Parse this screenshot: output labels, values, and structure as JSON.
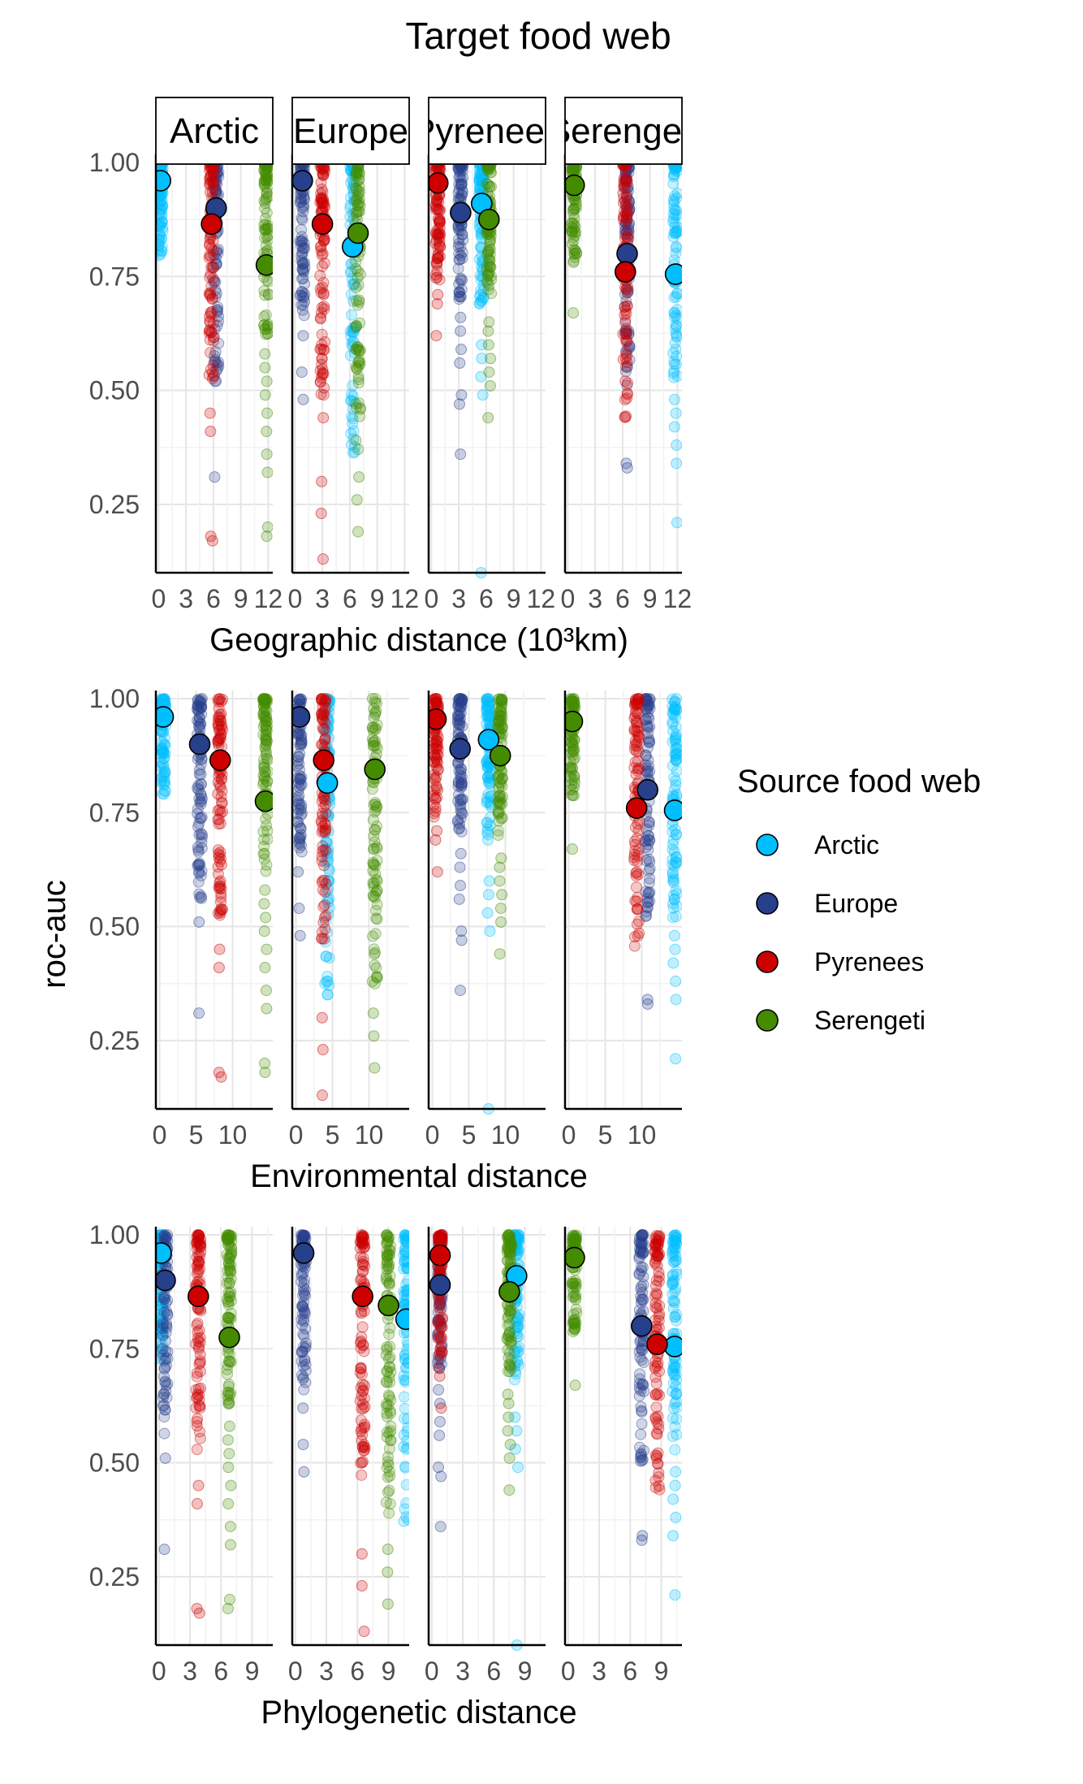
{
  "chart_data": {
    "type": "scatter",
    "title": "Target food web",
    "ylabel": "roc-auc",
    "ylim": [
      0.1,
      1.0
    ],
    "y_ticks": [
      "0.25",
      "0.50",
      "0.75",
      "1.00"
    ],
    "facets": [
      "Arctic",
      "Europe",
      "Pyrenees",
      "Serengeti"
    ],
    "legend": {
      "title": "Source food web",
      "position": "right",
      "entries": [
        {
          "name": "Arctic",
          "color": "#00bfff"
        },
        {
          "name": "Europe",
          "color": "#27408b"
        },
        {
          "name": "Pyrenees",
          "color": "#cd0000"
        },
        {
          "name": "Serengeti",
          "color": "#458b00"
        }
      ]
    },
    "rows": [
      {
        "xlabel": "Geographic distance (10³km)",
        "xlim": [
          -0.3,
          12.5
        ],
        "x_ticks": [
          "0",
          "3",
          "6",
          "9",
          "12"
        ],
        "panels": [
          {
            "target": "Arctic",
            "series": [
              {
                "source": "Arctic",
                "x": 0.2,
                "mean": 0.96,
                "min": 0.79,
                "max": 1.0,
                "outliers": []
              },
              {
                "source": "Europe",
                "x": 6.3,
                "mean": 0.9,
                "min": 0.51,
                "max": 1.0,
                "outliers": [
                  0.31
                ]
              },
              {
                "source": "Pyrenees",
                "x": 5.8,
                "mean": 0.865,
                "min": 0.52,
                "max": 1.0,
                "outliers": [
                  0.45,
                  0.41,
                  0.18,
                  0.17
                ]
              },
              {
                "source": "Serengeti",
                "x": 11.8,
                "mean": 0.775,
                "min": 0.62,
                "max": 1.0,
                "outliers": [
                  0.58,
                  0.55,
                  0.52,
                  0.49,
                  0.45,
                  0.41,
                  0.36,
                  0.32,
                  0.2,
                  0.18
                ]
              }
            ]
          },
          {
            "target": "Europe",
            "series": [
              {
                "source": "Arctic",
                "x": 6.3,
                "mean": 0.815,
                "min": 0.35,
                "max": 1.0,
                "outliers": []
              },
              {
                "source": "Europe",
                "x": 0.8,
                "mean": 0.96,
                "min": 0.66,
                "max": 1.0,
                "outliers": [
                  0.62,
                  0.54,
                  0.48
                ]
              },
              {
                "source": "Pyrenees",
                "x": 3.0,
                "mean": 0.865,
                "min": 0.47,
                "max": 1.0,
                "outliers": [
                  0.44,
                  0.3,
                  0.23,
                  0.13
                ]
              },
              {
                "source": "Serengeti",
                "x": 6.9,
                "mean": 0.845,
                "min": 0.37,
                "max": 1.0,
                "outliers": [
                  0.31,
                  0.26,
                  0.19
                ]
              }
            ]
          },
          {
            "target": "Pyrenees",
            "series": [
              {
                "source": "Arctic",
                "x": 5.5,
                "mean": 0.91,
                "min": 0.68,
                "max": 1.0,
                "outliers": [
                  0.6,
                  0.57,
                  0.53,
                  0.49,
                  0.1
                ]
              },
              {
                "source": "Europe",
                "x": 3.2,
                "mean": 0.89,
                "min": 0.7,
                "max": 1.0,
                "outliers": [
                  0.66,
                  0.63,
                  0.59,
                  0.56,
                  0.49,
                  0.47,
                  0.36
                ]
              },
              {
                "source": "Pyrenees",
                "x": 0.7,
                "mean": 0.955,
                "min": 0.73,
                "max": 1.0,
                "outliers": [
                  0.71,
                  0.69,
                  0.62
                ]
              },
              {
                "source": "Serengeti",
                "x": 6.3,
                "mean": 0.875,
                "min": 0.7,
                "max": 1.0,
                "outliers": [
                  0.65,
                  0.63,
                  0.6,
                  0.57,
                  0.54,
                  0.51,
                  0.44
                ]
              }
            ]
          },
          {
            "target": "Serengeti",
            "series": [
              {
                "source": "Arctic",
                "x": 11.8,
                "mean": 0.755,
                "min": 0.52,
                "max": 1.0,
                "outliers": [
                  0.48,
                  0.45,
                  0.42,
                  0.38,
                  0.34,
                  0.21
                ]
              },
              {
                "source": "Europe",
                "x": 6.5,
                "mean": 0.8,
                "min": 0.5,
                "max": 1.0,
                "outliers": [
                  0.34,
                  0.33
                ]
              },
              {
                "source": "Pyrenees",
                "x": 6.3,
                "mean": 0.76,
                "min": 0.44,
                "max": 1.0,
                "outliers": []
              },
              {
                "source": "Serengeti",
                "x": 0.7,
                "mean": 0.95,
                "min": 0.78,
                "max": 1.0,
                "outliers": [
                  0.67
                ]
              }
            ]
          }
        ]
      },
      {
        "xlabel": "Environmental distance",
        "xlim": [
          -0.5,
          15.5
        ],
        "x_ticks": [
          "0",
          "5",
          "10"
        ],
        "panels": [
          {
            "target": "Arctic",
            "series": [
              {
                "source": "Arctic",
                "x": 0.5,
                "mean": 0.96,
                "min": 0.79,
                "max": 1.0,
                "outliers": []
              },
              {
                "source": "Europe",
                "x": 5.5,
                "mean": 0.9,
                "min": 0.56,
                "max": 1.0,
                "outliers": [
                  0.51,
                  0.31
                ]
              },
              {
                "source": "Pyrenees",
                "x": 8.3,
                "mean": 0.865,
                "min": 0.52,
                "max": 1.0,
                "outliers": [
                  0.45,
                  0.41,
                  0.18,
                  0.17
                ]
              },
              {
                "source": "Serengeti",
                "x": 14.5,
                "mean": 0.775,
                "min": 0.62,
                "max": 1.0,
                "outliers": [
                  0.58,
                  0.55,
                  0.52,
                  0.49,
                  0.45,
                  0.41,
                  0.36,
                  0.32,
                  0.2,
                  0.18
                ]
              }
            ]
          },
          {
            "target": "Europe",
            "series": [
              {
                "source": "Arctic",
                "x": 4.3,
                "mean": 0.815,
                "min": 0.35,
                "max": 1.0,
                "outliers": []
              },
              {
                "source": "Europe",
                "x": 0.5,
                "mean": 0.96,
                "min": 0.66,
                "max": 1.0,
                "outliers": [
                  0.62,
                  0.54,
                  0.48
                ]
              },
              {
                "source": "Pyrenees",
                "x": 3.8,
                "mean": 0.865,
                "min": 0.47,
                "max": 1.0,
                "outliers": [
                  0.3,
                  0.23,
                  0.13
                ]
              },
              {
                "source": "Serengeti",
                "x": 10.8,
                "mean": 0.845,
                "min": 0.37,
                "max": 1.0,
                "outliers": [
                  0.31,
                  0.26,
                  0.19
                ]
              }
            ]
          },
          {
            "target": "Pyrenees",
            "series": [
              {
                "source": "Arctic",
                "x": 7.7,
                "mean": 0.91,
                "min": 0.68,
                "max": 1.0,
                "outliers": [
                  0.6,
                  0.57,
                  0.53,
                  0.49,
                  0.1
                ]
              },
              {
                "source": "Europe",
                "x": 3.8,
                "mean": 0.89,
                "min": 0.7,
                "max": 1.0,
                "outliers": [
                  0.66,
                  0.63,
                  0.59,
                  0.56,
                  0.49,
                  0.47,
                  0.36
                ]
              },
              {
                "source": "Pyrenees",
                "x": 0.5,
                "mean": 0.955,
                "min": 0.73,
                "max": 1.0,
                "outliers": [
                  0.71,
                  0.69,
                  0.62
                ]
              },
              {
                "source": "Serengeti",
                "x": 9.3,
                "mean": 0.875,
                "min": 0.7,
                "max": 1.0,
                "outliers": [
                  0.65,
                  0.63,
                  0.6,
                  0.57,
                  0.54,
                  0.51,
                  0.44
                ]
              }
            ]
          },
          {
            "target": "Serengeti",
            "series": [
              {
                "source": "Arctic",
                "x": 14.5,
                "mean": 0.755,
                "min": 0.52,
                "max": 1.0,
                "outliers": [
                  0.48,
                  0.45,
                  0.42,
                  0.38,
                  0.34,
                  0.21
                ]
              },
              {
                "source": "Europe",
                "x": 10.8,
                "mean": 0.8,
                "min": 0.5,
                "max": 1.0,
                "outliers": [
                  0.34,
                  0.33
                ]
              },
              {
                "source": "Pyrenees",
                "x": 9.3,
                "mean": 0.76,
                "min": 0.44,
                "max": 1.0,
                "outliers": []
              },
              {
                "source": "Serengeti",
                "x": 0.5,
                "mean": 0.95,
                "min": 0.78,
                "max": 1.0,
                "outliers": [
                  0.67
                ]
              }
            ]
          }
        ]
      },
      {
        "xlabel": "Phylogenetic distance",
        "xlim": [
          -0.3,
          11.0
        ],
        "x_ticks": [
          "0",
          "3",
          "6",
          "9"
        ],
        "panels": [
          {
            "target": "Arctic",
            "series": [
              {
                "source": "Arctic",
                "x": 0.2,
                "mean": 0.96,
                "min": 0.72,
                "max": 1.0,
                "outliers": []
              },
              {
                "source": "Europe",
                "x": 0.6,
                "mean": 0.9,
                "min": 0.56,
                "max": 1.0,
                "outliers": [
                  0.51,
                  0.31
                ]
              },
              {
                "source": "Pyrenees",
                "x": 3.8,
                "mean": 0.865,
                "min": 0.52,
                "max": 1.0,
                "outliers": [
                  0.45,
                  0.41,
                  0.18,
                  0.17
                ]
              },
              {
                "source": "Serengeti",
                "x": 6.8,
                "mean": 0.775,
                "min": 0.62,
                "max": 1.0,
                "outliers": [
                  0.58,
                  0.55,
                  0.52,
                  0.49,
                  0.45,
                  0.41,
                  0.36,
                  0.32,
                  0.2,
                  0.18
                ]
              }
            ]
          },
          {
            "target": "Europe",
            "series": [
              {
                "source": "Arctic",
                "x": 10.7,
                "mean": 0.815,
                "min": 0.35,
                "max": 1.0,
                "outliers": []
              },
              {
                "source": "Europe",
                "x": 0.8,
                "mean": 0.96,
                "min": 0.66,
                "max": 1.0,
                "outliers": [
                  0.62,
                  0.54,
                  0.48
                ]
              },
              {
                "source": "Pyrenees",
                "x": 6.5,
                "mean": 0.865,
                "min": 0.47,
                "max": 1.0,
                "outliers": [
                  0.3,
                  0.23,
                  0.13
                ]
              },
              {
                "source": "Serengeti",
                "x": 9.0,
                "mean": 0.845,
                "min": 0.37,
                "max": 1.0,
                "outliers": [
                  0.31,
                  0.26,
                  0.19
                ]
              }
            ]
          },
          {
            "target": "Pyrenees",
            "series": [
              {
                "source": "Arctic",
                "x": 8.2,
                "mean": 0.91,
                "min": 0.68,
                "max": 1.0,
                "outliers": [
                  0.6,
                  0.57,
                  0.53,
                  0.49,
                  0.1
                ]
              },
              {
                "source": "Europe",
                "x": 0.8,
                "mean": 0.89,
                "min": 0.7,
                "max": 1.0,
                "outliers": [
                  0.66,
                  0.63,
                  0.59,
                  0.56,
                  0.49,
                  0.47,
                  0.36
                ]
              },
              {
                "source": "Pyrenees",
                "x": 0.8,
                "mean": 0.955,
                "min": 0.73,
                "max": 1.0,
                "outliers": [
                  0.71,
                  0.69,
                  0.62
                ]
              },
              {
                "source": "Serengeti",
                "x": 7.5,
                "mean": 0.875,
                "min": 0.7,
                "max": 1.0,
                "outliers": [
                  0.65,
                  0.63,
                  0.6,
                  0.57,
                  0.54,
                  0.51,
                  0.44
                ]
              }
            ]
          },
          {
            "target": "Serengeti",
            "series": [
              {
                "source": "Arctic",
                "x": 10.3,
                "mean": 0.755,
                "min": 0.52,
                "max": 1.0,
                "outliers": [
                  0.48,
                  0.45,
                  0.42,
                  0.38,
                  0.34,
                  0.21
                ]
              },
              {
                "source": "Europe",
                "x": 7.1,
                "mean": 0.8,
                "min": 0.5,
                "max": 1.0,
                "outliers": [
                  0.34,
                  0.33
                ]
              },
              {
                "source": "Pyrenees",
                "x": 8.6,
                "mean": 0.76,
                "min": 0.44,
                "max": 1.0,
                "outliers": []
              },
              {
                "source": "Serengeti",
                "x": 0.6,
                "mean": 0.95,
                "min": 0.78,
                "max": 1.0,
                "outliers": [
                  0.67
                ]
              }
            ]
          }
        ]
      }
    ]
  }
}
